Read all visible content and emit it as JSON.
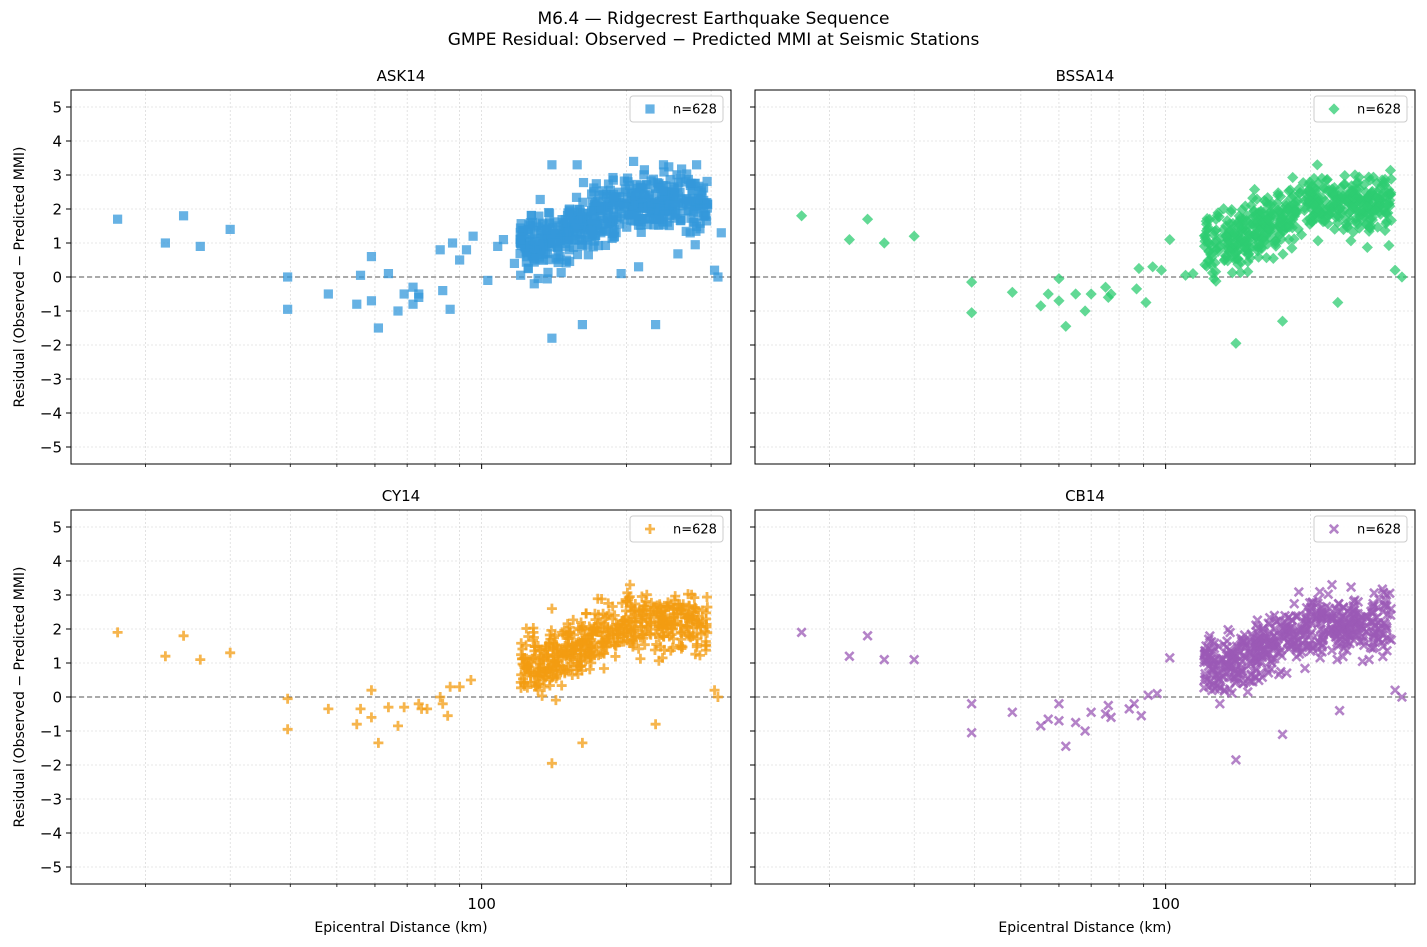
{
  "figure": {
    "title_line1": "M6.4 — Ridgecrest Earthquake Sequence",
    "title_line2": "GMPE Residual: Observed − Predicted MMI at Seismic Stations",
    "xlabel": "Epicentral Distance (km)",
    "ylabel": "Residual (Observed − Predicted MMI)",
    "x_tick_labels": [
      "100"
    ],
    "y_tick_labels": [
      "5",
      "4",
      "3",
      "2",
      "1",
      "0",
      "−1",
      "−2",
      "−3",
      "−4",
      "−5"
    ]
  },
  "chart_data": [
    {
      "type": "scatter",
      "title": "ASK14",
      "legend": "n=628",
      "legend_position": "top-right",
      "marker": "square-icon",
      "color": "#3498db",
      "xlabel": "",
      "ylabel": "Residual (Observed − Predicted MMI)",
      "x_scale": "log",
      "xlim": [
        14,
        330
      ],
      "ylim": [
        -5.5,
        5.5
      ],
      "grid": true,
      "reference_line_y": 0,
      "points": [
        [
          17.5,
          1.7
        ],
        [
          22,
          1.0
        ],
        [
          24,
          1.8
        ],
        [
          26,
          0.9
        ],
        [
          30,
          1.4
        ],
        [
          39.5,
          0.0
        ],
        [
          39.5,
          -0.95
        ],
        [
          48,
          -0.5
        ],
        [
          55,
          -0.8
        ],
        [
          56,
          0.05
        ],
        [
          59,
          -0.7
        ],
        [
          59,
          0.6
        ],
        [
          61,
          -1.5
        ],
        [
          64,
          0.1
        ],
        [
          67,
          -1.0
        ],
        [
          69,
          -0.5
        ],
        [
          72,
          -0.3
        ],
        [
          72,
          -0.8
        ],
        [
          74,
          -0.5
        ],
        [
          74,
          -0.6
        ],
        [
          83,
          -0.4
        ],
        [
          82,
          0.8
        ],
        [
          86,
          -0.95
        ],
        [
          87,
          1.0
        ],
        [
          90,
          0.5
        ],
        [
          93,
          0.8
        ],
        [
          96,
          1.2
        ],
        [
          103,
          -0.1
        ],
        [
          108,
          0.9
        ],
        [
          111,
          1.1
        ],
        [
          117,
          0.4
        ],
        [
          129,
          0.5
        ],
        [
          140,
          -1.8
        ],
        [
          162,
          -1.4
        ],
        [
          195,
          0.1
        ],
        [
          212,
          0.3
        ],
        [
          230,
          -1.4
        ],
        [
          305,
          0.2
        ],
        [
          310,
          0.0
        ],
        [
          315,
          1.3
        ],
        [
          140,
          3.3
        ],
        [
          158,
          3.3
        ],
        [
          207,
          3.4
        ]
      ]
    },
    {
      "type": "scatter",
      "title": "BSSA14",
      "legend": "n=628",
      "legend_position": "top-right",
      "marker": "diamond-icon",
      "color": "#2ecc71",
      "xlabel": "",
      "ylabel": "",
      "x_scale": "log",
      "xlim": [
        14,
        330
      ],
      "ylim": [
        -5.5,
        5.5
      ],
      "grid": true,
      "reference_line_y": 0,
      "points": [
        [
          17.5,
          1.8
        ],
        [
          22,
          1.1
        ],
        [
          24,
          1.7
        ],
        [
          26,
          1.0
        ],
        [
          30,
          1.2
        ],
        [
          39.5,
          -0.15
        ],
        [
          39.5,
          -1.05
        ],
        [
          48,
          -0.45
        ],
        [
          55,
          -0.85
        ],
        [
          57,
          -0.5
        ],
        [
          60,
          -0.7
        ],
        [
          60,
          -0.05
        ],
        [
          62,
          -1.45
        ],
        [
          65,
          -0.5
        ],
        [
          68,
          -1.0
        ],
        [
          70,
          -0.5
        ],
        [
          75,
          -0.3
        ],
        [
          76,
          -0.6
        ],
        [
          77,
          -0.5
        ],
        [
          87,
          -0.35
        ],
        [
          88,
          0.25
        ],
        [
          91,
          -0.75
        ],
        [
          94,
          0.3
        ],
        [
          98,
          0.2
        ],
        [
          102,
          1.1
        ],
        [
          110,
          0.05
        ],
        [
          114,
          0.1
        ],
        [
          140,
          -1.95
        ],
        [
          175,
          -1.3
        ],
        [
          228,
          -0.75
        ],
        [
          300,
          0.2
        ],
        [
          310,
          0.0
        ]
      ]
    },
    {
      "type": "scatter",
      "title": "CY14",
      "legend": "n=628",
      "legend_position": "top-right",
      "marker": "plus-icon",
      "color": "#f39c12",
      "xlabel": "Epicentral Distance (km)",
      "ylabel": "Residual (Observed − Predicted MMI)",
      "x_scale": "log",
      "xlim": [
        14,
        330
      ],
      "ylim": [
        -5.5,
        5.5
      ],
      "grid": true,
      "reference_line_y": 0,
      "points": [
        [
          17.5,
          1.9
        ],
        [
          22,
          1.2
        ],
        [
          24,
          1.8
        ],
        [
          26,
          1.1
        ],
        [
          30,
          1.3
        ],
        [
          39.5,
          -0.05
        ],
        [
          39.5,
          -0.95
        ],
        [
          48,
          -0.35
        ],
        [
          55,
          -0.8
        ],
        [
          56,
          -0.35
        ],
        [
          59,
          -0.6
        ],
        [
          59,
          0.2
        ],
        [
          61,
          -1.35
        ],
        [
          64,
          -0.3
        ],
        [
          67,
          -0.85
        ],
        [
          69,
          -0.3
        ],
        [
          74,
          -0.2
        ],
        [
          75,
          -0.35
        ],
        [
          77,
          -0.35
        ],
        [
          82,
          0.0
        ],
        [
          83,
          -0.2
        ],
        [
          85,
          -0.55
        ],
        [
          86,
          0.3
        ],
        [
          90,
          0.3
        ],
        [
          95,
          0.5
        ],
        [
          140,
          -1.95
        ],
        [
          140,
          2.6
        ],
        [
          162,
          -1.35
        ],
        [
          230,
          -0.8
        ],
        [
          305,
          0.2
        ],
        [
          310,
          0.0
        ]
      ]
    },
    {
      "type": "scatter",
      "title": "CB14",
      "legend": "n=628",
      "legend_position": "top-right",
      "marker": "x-icon",
      "color": "#9b59b6",
      "xlabel": "Epicentral Distance (km)",
      "ylabel": "",
      "x_scale": "log",
      "xlim": [
        14,
        330
      ],
      "ylim": [
        -5.5,
        5.5
      ],
      "grid": true,
      "reference_line_y": 0,
      "points": [
        [
          17.5,
          1.9
        ],
        [
          22,
          1.2
        ],
        [
          24,
          1.8
        ],
        [
          26,
          1.1
        ],
        [
          30,
          1.1
        ],
        [
          39.5,
          -0.2
        ],
        [
          39.5,
          -1.05
        ],
        [
          48,
          -0.45
        ],
        [
          55,
          -0.85
        ],
        [
          57,
          -0.65
        ],
        [
          60,
          -0.7
        ],
        [
          60,
          -0.2
        ],
        [
          62,
          -1.45
        ],
        [
          65,
          -0.75
        ],
        [
          68,
          -1.0
        ],
        [
          70,
          -0.45
        ],
        [
          75,
          -0.5
        ],
        [
          76,
          -0.25
        ],
        [
          77,
          -0.6
        ],
        [
          84,
          -0.35
        ],
        [
          86,
          -0.2
        ],
        [
          89,
          -0.55
        ],
        [
          92,
          0.05
        ],
        [
          96,
          0.1
        ],
        [
          102,
          1.15
        ],
        [
          140,
          -1.85
        ],
        [
          175,
          -1.1
        ],
        [
          230,
          -0.4
        ],
        [
          300,
          0.2
        ],
        [
          310,
          0.0
        ]
      ]
    }
  ]
}
